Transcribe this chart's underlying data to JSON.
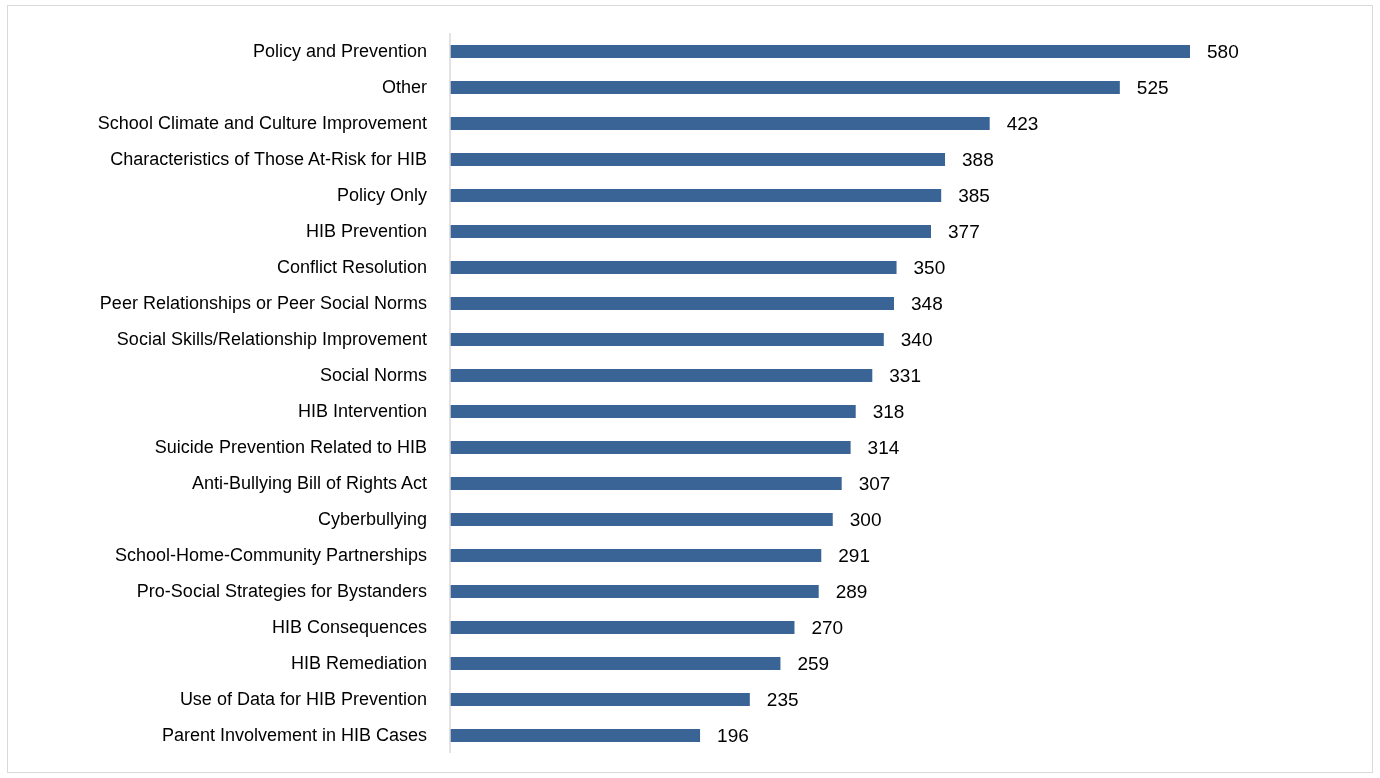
{
  "chart_data": {
    "type": "bar",
    "orientation": "horizontal",
    "categories": [
      "Policy and Prevention",
      "Other",
      "School Climate and Culture Improvement",
      "Characteristics of Those At-Risk for HIB",
      "Policy Only",
      "HIB Prevention",
      "Conflict Resolution",
      "Peer Relationships or Peer Social Norms",
      "Social Skills/Relationship Improvement",
      "Social Norms",
      "HIB Intervention",
      "Suicide Prevention Related to HIB",
      "Anti-Bullying Bill of Rights Act",
      "Cyberbullying",
      "School-Home-Community Partnerships",
      "Pro-Social Strategies for Bystanders",
      "HIB Consequences",
      "HIB Remediation",
      "Use of Data for HIB Prevention",
      "Parent Involvement in HIB Cases"
    ],
    "values": [
      580,
      525,
      423,
      388,
      385,
      377,
      350,
      348,
      340,
      331,
      318,
      314,
      307,
      300,
      291,
      289,
      270,
      259,
      235,
      196
    ],
    "color": "#3a6495",
    "data_labels": true,
    "tick_labels": "y"
  }
}
